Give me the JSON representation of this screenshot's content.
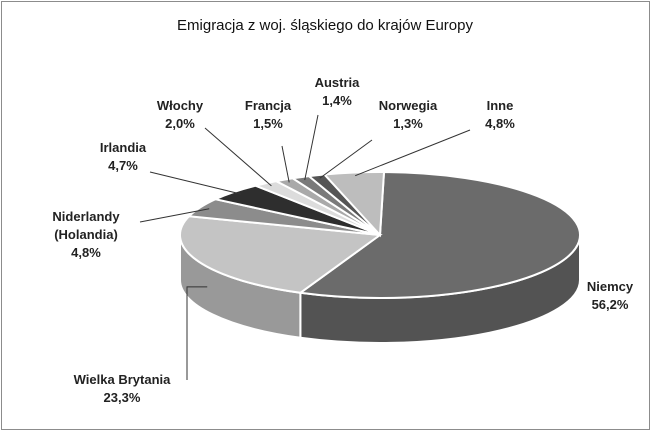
{
  "chart_data": {
    "type": "pie",
    "title": "Emigracja z woj. śląskiego do krajów Europy",
    "categories": [
      "Niemcy",
      "Wielka Brytania",
      "Niderlandy (Holandia)",
      "Irlandia",
      "Włochy",
      "Francja",
      "Austria",
      "Norwegia",
      "Inne"
    ],
    "values": [
      56.2,
      23.3,
      4.8,
      4.7,
      2.0,
      1.5,
      1.4,
      1.3,
      4.8
    ],
    "value_labels": [
      "56,2%",
      "23,3%",
      "4,8%",
      "4,7%",
      "2,0%",
      "1,5%",
      "1,4%",
      "1,3%",
      "4,8%"
    ],
    "colors": [
      "#6b6b6b",
      "#c4c4c4",
      "#8c8c8c",
      "#2e2e2e",
      "#dcdcdc",
      "#a9a9a9",
      "#7a7a7a",
      "#555555",
      "#bdbdbd"
    ]
  }
}
